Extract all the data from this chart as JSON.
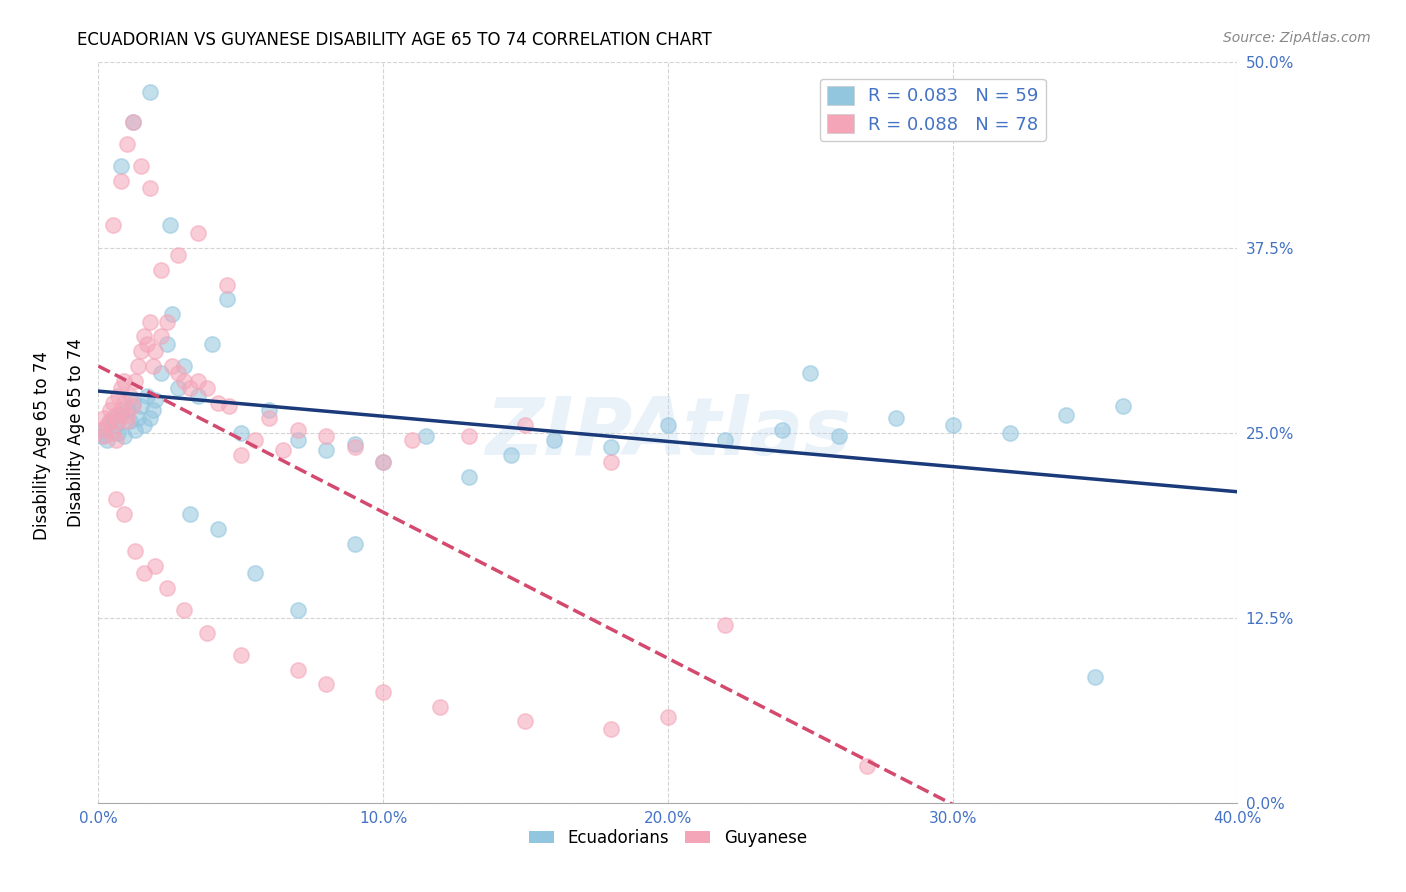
{
  "title": "ECUADORIAN VS GUYANESE DISABILITY AGE 65 TO 74 CORRELATION CHART",
  "source": "Source: ZipAtlas.com",
  "ylabel": "Disability Age 65 to 74",
  "xlim": [
    0.0,
    0.4
  ],
  "ylim": [
    0.0,
    0.5
  ],
  "legend_labels": [
    "Ecuadorians",
    "Guyanese"
  ],
  "R_ecuadorian": 0.083,
  "N_ecuadorian": 59,
  "R_guyanese": 0.088,
  "N_guyanese": 78,
  "color_blue": "#92c5de",
  "color_pink": "#f4a5b8",
  "trendline_blue": "#1a3a7a",
  "trendline_pink": "#d44a6e",
  "watermark": "ZIPAtlas",
  "ecuadorian_x": [
    0.001,
    0.002,
    0.003,
    0.004,
    0.005,
    0.006,
    0.007,
    0.008,
    0.009,
    0.01,
    0.011,
    0.012,
    0.013,
    0.014,
    0.015,
    0.016,
    0.017,
    0.018,
    0.019,
    0.02,
    0.022,
    0.024,
    0.026,
    0.028,
    0.03,
    0.035,
    0.04,
    0.045,
    0.05,
    0.06,
    0.07,
    0.08,
    0.09,
    0.1,
    0.115,
    0.13,
    0.145,
    0.16,
    0.18,
    0.2,
    0.22,
    0.24,
    0.26,
    0.28,
    0.3,
    0.32,
    0.34,
    0.36,
    0.008,
    0.012,
    0.018,
    0.025,
    0.032,
    0.042,
    0.055,
    0.07,
    0.09,
    0.25,
    0.35
  ],
  "ecuadorian_y": [
    0.248,
    0.252,
    0.245,
    0.258,
    0.26,
    0.255,
    0.25,
    0.262,
    0.248,
    0.265,
    0.258,
    0.27,
    0.252,
    0.26,
    0.268,
    0.255,
    0.275,
    0.26,
    0.265,
    0.272,
    0.29,
    0.31,
    0.33,
    0.28,
    0.295,
    0.275,
    0.31,
    0.34,
    0.25,
    0.265,
    0.245,
    0.238,
    0.242,
    0.23,
    0.248,
    0.22,
    0.235,
    0.245,
    0.24,
    0.255,
    0.245,
    0.252,
    0.248,
    0.26,
    0.255,
    0.25,
    0.262,
    0.268,
    0.43,
    0.46,
    0.48,
    0.39,
    0.195,
    0.185,
    0.155,
    0.13,
    0.175,
    0.29,
    0.085
  ],
  "guyanese_x": [
    0.001,
    0.002,
    0.002,
    0.003,
    0.004,
    0.004,
    0.005,
    0.005,
    0.006,
    0.006,
    0.007,
    0.007,
    0.008,
    0.008,
    0.009,
    0.009,
    0.01,
    0.01,
    0.011,
    0.012,
    0.013,
    0.014,
    0.015,
    0.016,
    0.017,
    0.018,
    0.019,
    0.02,
    0.022,
    0.024,
    0.026,
    0.028,
    0.03,
    0.032,
    0.035,
    0.038,
    0.042,
    0.046,
    0.05,
    0.055,
    0.06,
    0.065,
    0.07,
    0.08,
    0.09,
    0.1,
    0.11,
    0.13,
    0.15,
    0.18,
    0.005,
    0.008,
    0.01,
    0.012,
    0.015,
    0.018,
    0.022,
    0.028,
    0.035,
    0.045,
    0.006,
    0.009,
    0.013,
    0.016,
    0.02,
    0.024,
    0.03,
    0.038,
    0.05,
    0.07,
    0.08,
    0.1,
    0.12,
    0.15,
    0.18,
    0.2,
    0.22,
    0.27
  ],
  "guyanese_y": [
    0.252,
    0.248,
    0.26,
    0.255,
    0.258,
    0.265,
    0.25,
    0.27,
    0.245,
    0.262,
    0.258,
    0.275,
    0.265,
    0.28,
    0.27,
    0.285,
    0.258,
    0.262,
    0.275,
    0.268,
    0.285,
    0.295,
    0.305,
    0.315,
    0.31,
    0.325,
    0.295,
    0.305,
    0.315,
    0.325,
    0.295,
    0.29,
    0.285,
    0.28,
    0.285,
    0.28,
    0.27,
    0.268,
    0.235,
    0.245,
    0.26,
    0.238,
    0.252,
    0.248,
    0.24,
    0.23,
    0.245,
    0.248,
    0.255,
    0.23,
    0.39,
    0.42,
    0.445,
    0.46,
    0.43,
    0.415,
    0.36,
    0.37,
    0.385,
    0.35,
    0.205,
    0.195,
    0.17,
    0.155,
    0.16,
    0.145,
    0.13,
    0.115,
    0.1,
    0.09,
    0.08,
    0.075,
    0.065,
    0.055,
    0.05,
    0.058,
    0.12,
    0.025
  ]
}
